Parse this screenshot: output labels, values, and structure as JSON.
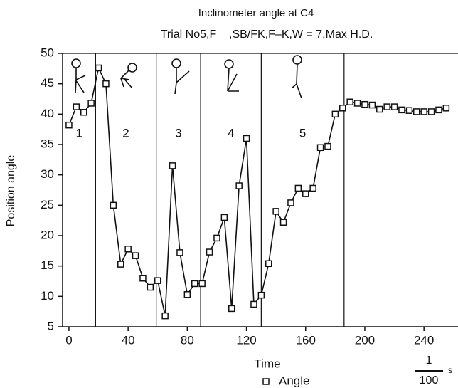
{
  "chart_data": {
    "type": "line",
    "title": "Inclinometer angle at C4",
    "subtitle": "Trial No5,F    ,SB/FK,F–K,W = 7,Max H.D.",
    "y_label": "Position angle",
    "x_label": "Time",
    "time_unit": {
      "numerator": "1",
      "denominator": "100",
      "suffix": "s"
    },
    "x": [
      0,
      5,
      10,
      15,
      20,
      25,
      30,
      35,
      40,
      45,
      50,
      55,
      60,
      65,
      70,
      75,
      80,
      85,
      90,
      95,
      100,
      105,
      110,
      115,
      120,
      125,
      130,
      135,
      140,
      145,
      150,
      155,
      160,
      165,
      170,
      175,
      180,
      185,
      190,
      195,
      200,
      205,
      210,
      215,
      220,
      225,
      230,
      235,
      240,
      245,
      250,
      255
    ],
    "series": [
      {
        "name": "Angle",
        "color": "#111111",
        "values": [
          38.2,
          41.2,
          40.3,
          41.8,
          47.6,
          45,
          25,
          15.3,
          17.8,
          16.7,
          13,
          11.5,
          12.6,
          6.8,
          31.5,
          17.2,
          10.3,
          12.1,
          12.1,
          17.3,
          19.6,
          23,
          8,
          28.2,
          36,
          8.7,
          10.2,
          15.4,
          24,
          22.2,
          25.4,
          27.8,
          26.9,
          27.8,
          34.5,
          34.7,
          40,
          41,
          42,
          41.8,
          41.6,
          41.5,
          40.8,
          41.2,
          41.2,
          40.7,
          40.6,
          40.4,
          40.4,
          40.4,
          40.7,
          41
        ]
      }
    ],
    "phase_boundaries": [
      18,
      59,
      89,
      130,
      186
    ],
    "phases": [
      "1",
      "2",
      "3",
      "4",
      "5"
    ],
    "xlim": [
      -4.3,
      263
    ],
    "ylim": [
      5,
      50
    ],
    "xticks": [
      0,
      40,
      80,
      120,
      160,
      200,
      240
    ],
    "yticks": [
      5,
      10,
      15,
      20,
      25,
      30,
      35,
      40,
      45,
      50
    ]
  }
}
